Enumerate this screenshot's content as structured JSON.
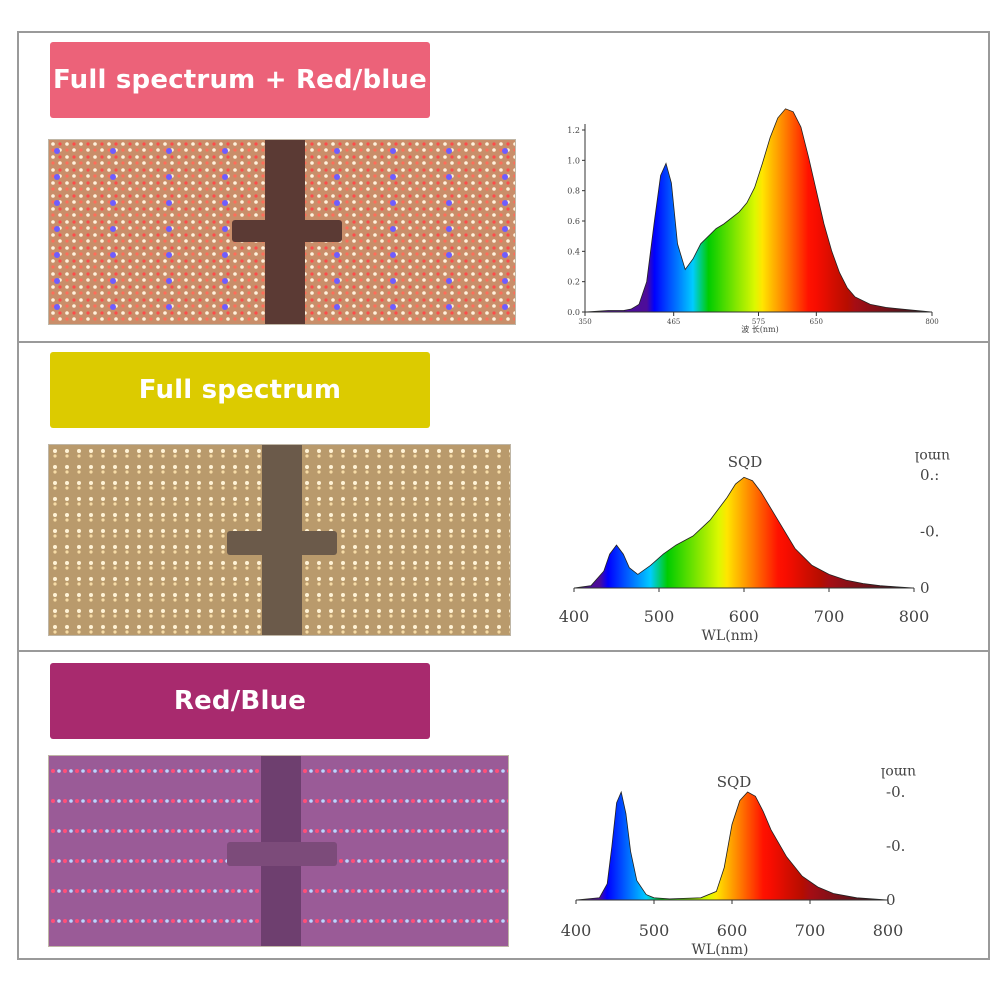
{
  "colors": {
    "banner_full_red_blue": "#ec6279",
    "banner_full": "#dccb00",
    "banner_red_blue": "#a82a6e"
  },
  "sections": [
    {
      "title": "Full spectrum + Red/blue"
    },
    {
      "title": "Full spectrum"
    },
    {
      "title": "Red/Blue"
    }
  ],
  "chart_data": [
    {
      "type": "area",
      "title": "",
      "xlabel": "波 长(nm)",
      "ylabel": "",
      "xlim": [
        350,
        800
      ],
      "ylim": [
        0,
        1.2
      ],
      "x_ticks": [
        "350",
        "465",
        "575",
        "650",
        "800"
      ],
      "x_tick_values": [
        350,
        465,
        575,
        650,
        800
      ],
      "y_ticks": [
        "1.2",
        "1.0",
        "0.8",
        "0.6",
        "0.4",
        "0.2",
        "0.0"
      ],
      "y_tick_values": [
        1.2,
        1.0,
        0.8,
        0.6,
        0.4,
        0.2,
        0.0
      ],
      "x": [
        350,
        380,
        400,
        410,
        420,
        430,
        440,
        448,
        455,
        462,
        470,
        480,
        490,
        500,
        510,
        520,
        530,
        540,
        550,
        560,
        570,
        580,
        590,
        600,
        610,
        620,
        630,
        640,
        650,
        660,
        670,
        680,
        690,
        700,
        720,
        740,
        760,
        780,
        800
      ],
      "values": [
        0.0,
        0.01,
        0.01,
        0.02,
        0.05,
        0.2,
        0.6,
        0.9,
        0.98,
        0.85,
        0.45,
        0.28,
        0.35,
        0.45,
        0.5,
        0.55,
        0.58,
        0.62,
        0.66,
        0.72,
        0.82,
        0.98,
        1.15,
        1.28,
        1.34,
        1.32,
        1.22,
        1.02,
        0.8,
        0.58,
        0.4,
        0.26,
        0.16,
        0.1,
        0.05,
        0.03,
        0.02,
        0.01,
        0.0
      ]
    },
    {
      "type": "area",
      "title": "SQD",
      "xlabel": "WL(nm)",
      "ylabel": "",
      "right_label": "umol",
      "xlim": [
        400,
        800
      ],
      "ylim": [
        0,
        1.0
      ],
      "x_ticks": [
        "400",
        "500",
        "600",
        "700",
        "800"
      ],
      "x_tick_values": [
        400,
        500,
        600,
        700,
        800
      ],
      "y_ticks": [
        "0.:",
        "-0.",
        "0"
      ],
      "y_tick_values": [
        1.0,
        0.5,
        0.0
      ],
      "x": [
        400,
        420,
        435,
        442,
        450,
        458,
        465,
        475,
        490,
        505,
        520,
        540,
        560,
        580,
        590,
        600,
        610,
        620,
        640,
        660,
        680,
        700,
        720,
        740,
        760,
        780,
        800
      ],
      "values": [
        0.0,
        0.02,
        0.15,
        0.3,
        0.38,
        0.3,
        0.18,
        0.12,
        0.2,
        0.3,
        0.38,
        0.46,
        0.6,
        0.8,
        0.92,
        0.98,
        0.95,
        0.85,
        0.6,
        0.35,
        0.2,
        0.12,
        0.07,
        0.04,
        0.02,
        0.01,
        0.0
      ]
    },
    {
      "type": "area",
      "title": "SQD",
      "xlabel": "WL(nm)",
      "ylabel": "",
      "right_label": "umol",
      "xlim": [
        400,
        800
      ],
      "ylim": [
        0,
        1.0
      ],
      "x_ticks": [
        "400",
        "500",
        "600",
        "700",
        "800"
      ],
      "x_tick_values": [
        400,
        500,
        600,
        700,
        800
      ],
      "y_ticks": [
        "-0.",
        "-0.",
        "0"
      ],
      "y_tick_values": [
        1.0,
        0.5,
        0.0
      ],
      "x": [
        400,
        430,
        440,
        446,
        452,
        458,
        464,
        470,
        478,
        490,
        500,
        520,
        560,
        580,
        590,
        600,
        610,
        620,
        630,
        640,
        650,
        670,
        690,
        710,
        730,
        760,
        800
      ],
      "values": [
        0.0,
        0.02,
        0.15,
        0.5,
        0.9,
        1.0,
        0.8,
        0.45,
        0.18,
        0.05,
        0.02,
        0.01,
        0.02,
        0.08,
        0.3,
        0.7,
        0.92,
        1.0,
        0.96,
        0.82,
        0.65,
        0.4,
        0.22,
        0.12,
        0.06,
        0.02,
        0.0
      ]
    }
  ]
}
